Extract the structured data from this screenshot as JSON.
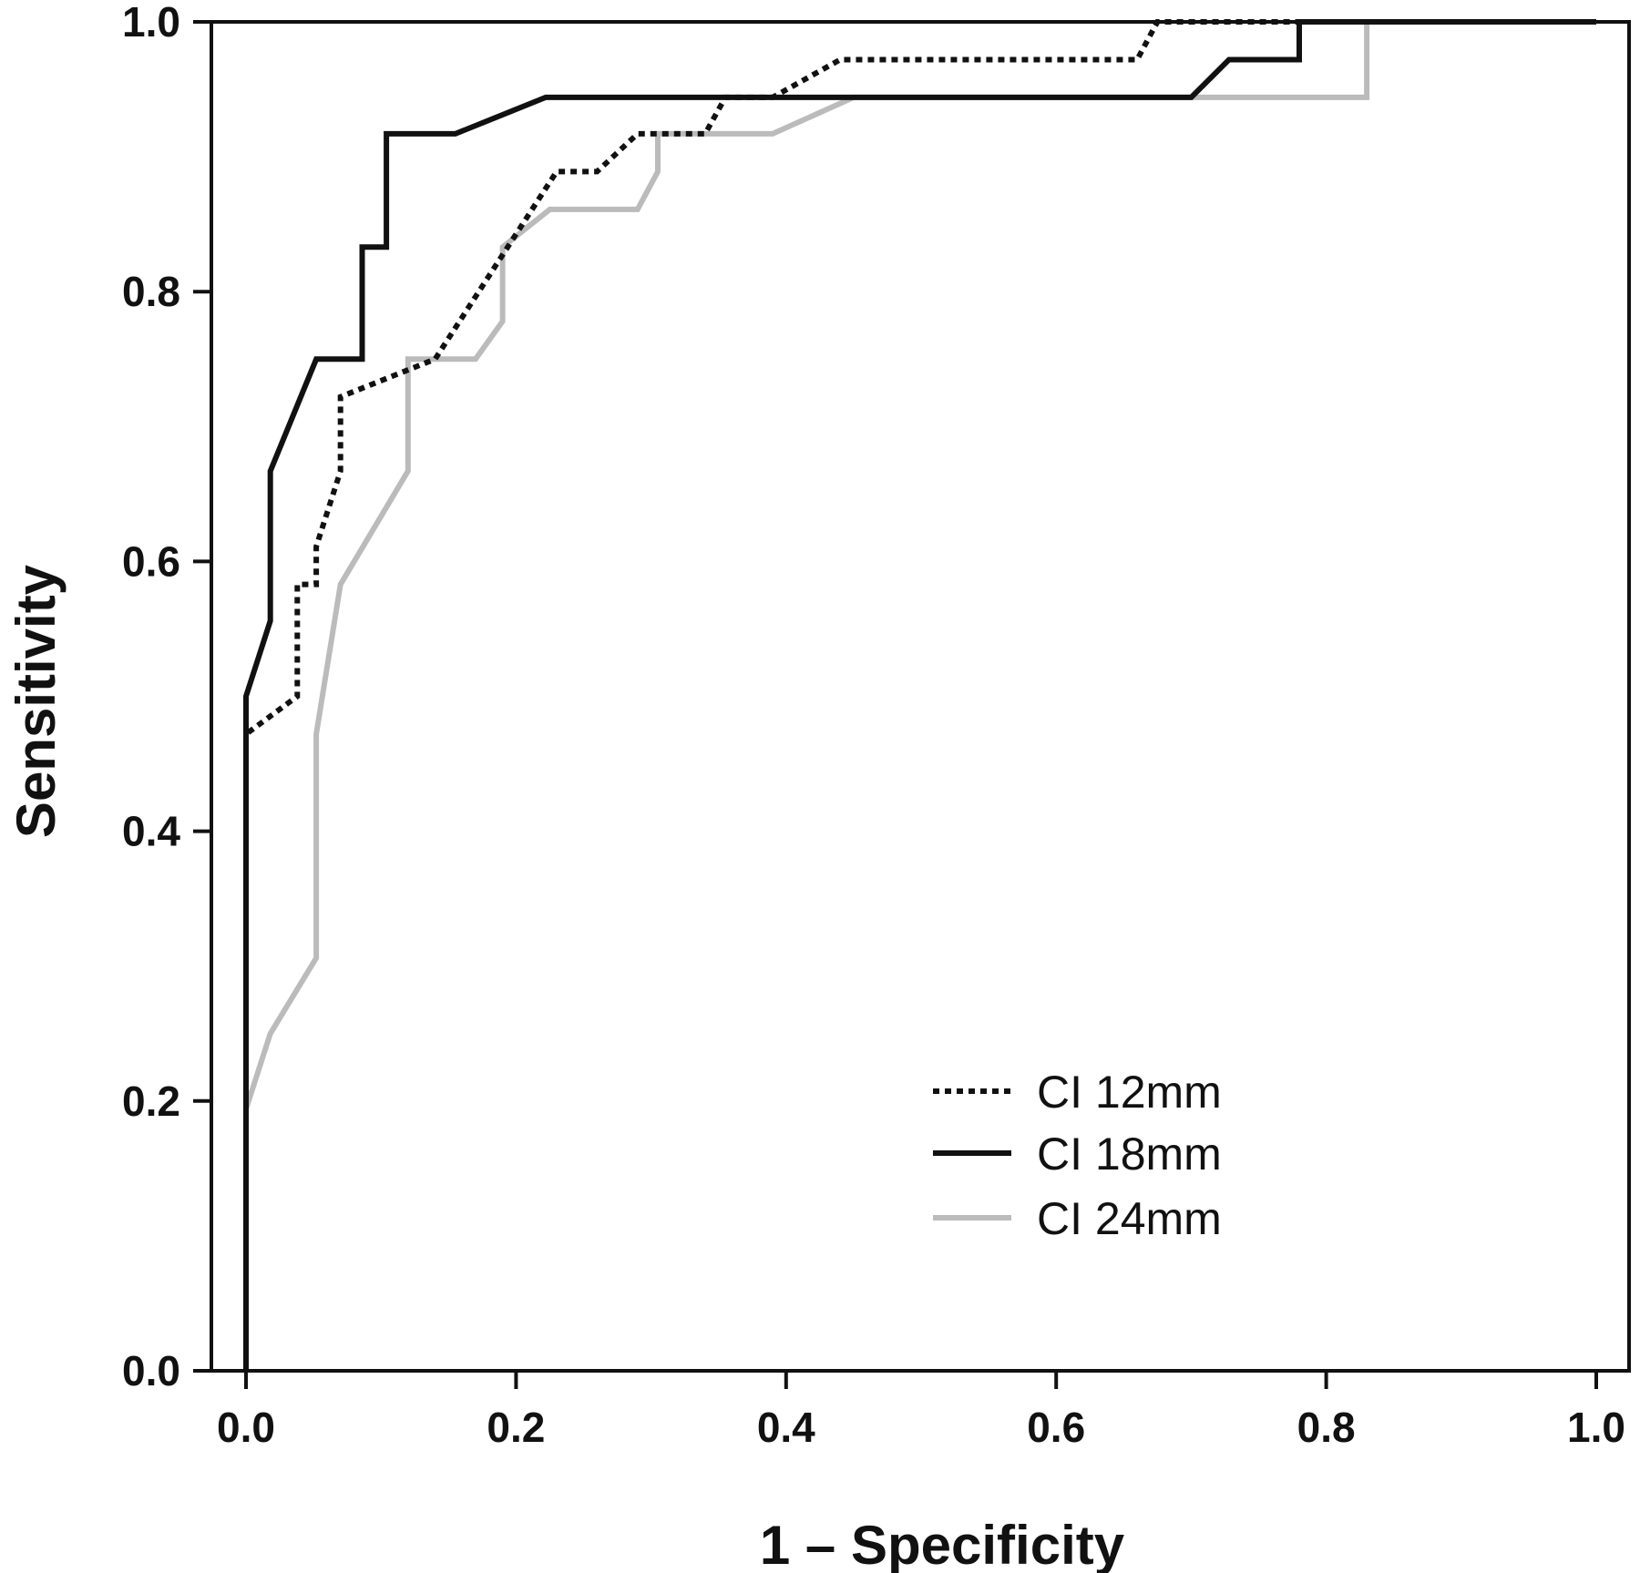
{
  "chart_data": {
    "type": "line",
    "title": "",
    "xlabel": "1 –  Specificity",
    "ylabel": "Sensitivity",
    "xlim": [
      0.0,
      1.0
    ],
    "ylim": [
      0.0,
      1.0
    ],
    "xticks": [
      "0.0",
      "0.2",
      "0.4",
      "0.6",
      "0.8",
      "1.0"
    ],
    "yticks": [
      "0.0",
      "0.2",
      "0.4",
      "0.6",
      "0.8",
      "1.0"
    ],
    "grid": false,
    "legend_position": "bottom-right",
    "series": [
      {
        "name": "CI 12mm",
        "color": "#111111",
        "style": "dotted",
        "points": [
          [
            0.0,
            0.0
          ],
          [
            0.0,
            0.472
          ],
          [
            0.038,
            0.5
          ],
          [
            0.038,
            0.583
          ],
          [
            0.052,
            0.583
          ],
          [
            0.052,
            0.611
          ],
          [
            0.07,
            0.667
          ],
          [
            0.07,
            0.722
          ],
          [
            0.14,
            0.75
          ],
          [
            0.23,
            0.889
          ],
          [
            0.26,
            0.889
          ],
          [
            0.29,
            0.917
          ],
          [
            0.34,
            0.917
          ],
          [
            0.355,
            0.944
          ],
          [
            0.39,
            0.944
          ],
          [
            0.44,
            0.972
          ],
          [
            0.66,
            0.972
          ],
          [
            0.675,
            1.0
          ],
          [
            1.0,
            1.0
          ]
        ]
      },
      {
        "name": "CI 18mm",
        "color": "#111111",
        "style": "solid",
        "points": [
          [
            0.0,
            0.0
          ],
          [
            0.0,
            0.5
          ],
          [
            0.018,
            0.556
          ],
          [
            0.018,
            0.667
          ],
          [
            0.052,
            0.75
          ],
          [
            0.086,
            0.75
          ],
          [
            0.086,
            0.833
          ],
          [
            0.104,
            0.833
          ],
          [
            0.104,
            0.917
          ],
          [
            0.155,
            0.917
          ],
          [
            0.222,
            0.944
          ],
          [
            0.7,
            0.944
          ],
          [
            0.728,
            0.972
          ],
          [
            0.78,
            0.972
          ],
          [
            0.78,
            1.0
          ],
          [
            1.0,
            1.0
          ]
        ]
      },
      {
        "name": "CI 24mm",
        "color": "#bbbbbb",
        "style": "solid",
        "points": [
          [
            0.0,
            0.0
          ],
          [
            0.0,
            0.194
          ],
          [
            0.018,
            0.25
          ],
          [
            0.052,
            0.306
          ],
          [
            0.052,
            0.472
          ],
          [
            0.07,
            0.583
          ],
          [
            0.12,
            0.667
          ],
          [
            0.12,
            0.75
          ],
          [
            0.17,
            0.75
          ],
          [
            0.19,
            0.778
          ],
          [
            0.19,
            0.833
          ],
          [
            0.225,
            0.861
          ],
          [
            0.29,
            0.861
          ],
          [
            0.305,
            0.889
          ],
          [
            0.305,
            0.917
          ],
          [
            0.39,
            0.917
          ],
          [
            0.45,
            0.944
          ],
          [
            0.83,
            0.944
          ],
          [
            0.83,
            1.0
          ],
          [
            1.0,
            1.0
          ]
        ]
      }
    ]
  }
}
